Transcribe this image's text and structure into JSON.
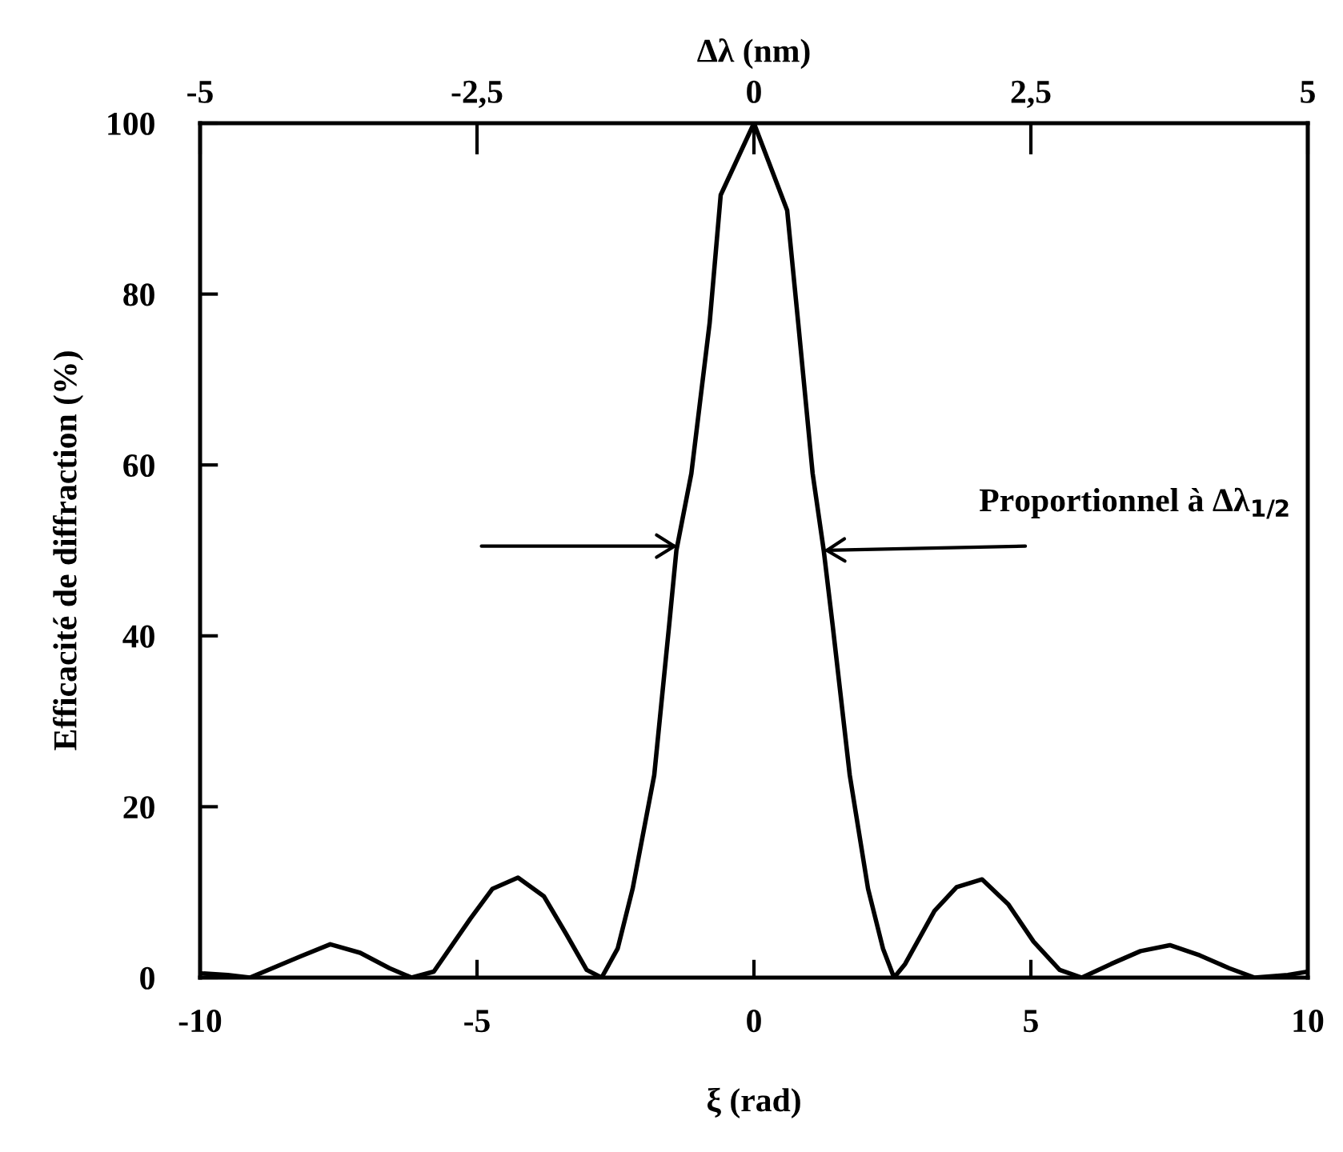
{
  "chart_data": {
    "type": "line",
    "x2label": "Δλ (nm)",
    "xlabel": "ξ (rad)",
    "ylabel": "Efficacité de diffraction (%)",
    "annotations": [
      {
        "text": "Proportionnel à Δλ$_{1/2}$",
        "x": 1.26,
        "y": 50
      }
    ],
    "series": [
      {
        "color": "#000000",
        "x": [
          -10,
          -9.5,
          -9.1,
          -8.18,
          -7.65,
          -7.11,
          -6.58,
          -6.18,
          -5.78,
          -5.12,
          -4.72,
          -4.26,
          -3.79,
          -3.39,
          -3.02,
          -2.75,
          -2.46,
          -2.19,
          -1.8,
          -1.53,
          -1.4,
          -1.13,
          -0.8,
          -0.6,
          0,
          0.6,
          0.8,
          1.06,
          1.26,
          1.42,
          1.73,
          2.06,
          2.33,
          2.53,
          2.73,
          3.26,
          3.66,
          4.12,
          4.59,
          5.05,
          5.52,
          5.92,
          6.45,
          6.98,
          7.51,
          8.05,
          8.58,
          9.04,
          9.64,
          10
        ],
        "values": [
          0.5,
          0.3,
          0,
          2.5,
          3.9,
          2.9,
          1.1,
          0,
          0.7,
          6.9,
          10.4,
          11.7,
          9.5,
          5.1,
          0.9,
          0,
          3.4,
          10.4,
          23.7,
          41.3,
          50,
          59,
          76.6,
          91.6,
          100,
          89.8,
          76.6,
          59,
          50,
          41.3,
          23.7,
          10.4,
          3.4,
          0,
          1.6,
          7.8,
          10.6,
          11.5,
          8.6,
          4.2,
          0.9,
          0,
          1.6,
          3.1,
          3.8,
          2.6,
          1.1,
          0,
          0.3,
          0.7
        ]
      }
    ],
    "xlim": [
      -10,
      10
    ],
    "xticks": [
      -10,
      -5,
      0,
      5,
      10
    ],
    "x2lim": [
      -5,
      5
    ],
    "x2ticks": [
      -5,
      {
        "value": -2.5,
        "label": "-2,5"
      },
      0,
      {
        "value": 2.5,
        "label": "2,5"
      },
      5
    ],
    "ylim": [
      0,
      100
    ],
    "yticks": [
      0,
      20,
      40,
      60,
      80,
      100
    ],
    "grid": false,
    "legend": false,
    "marker": "none",
    "line_style": "solid"
  }
}
